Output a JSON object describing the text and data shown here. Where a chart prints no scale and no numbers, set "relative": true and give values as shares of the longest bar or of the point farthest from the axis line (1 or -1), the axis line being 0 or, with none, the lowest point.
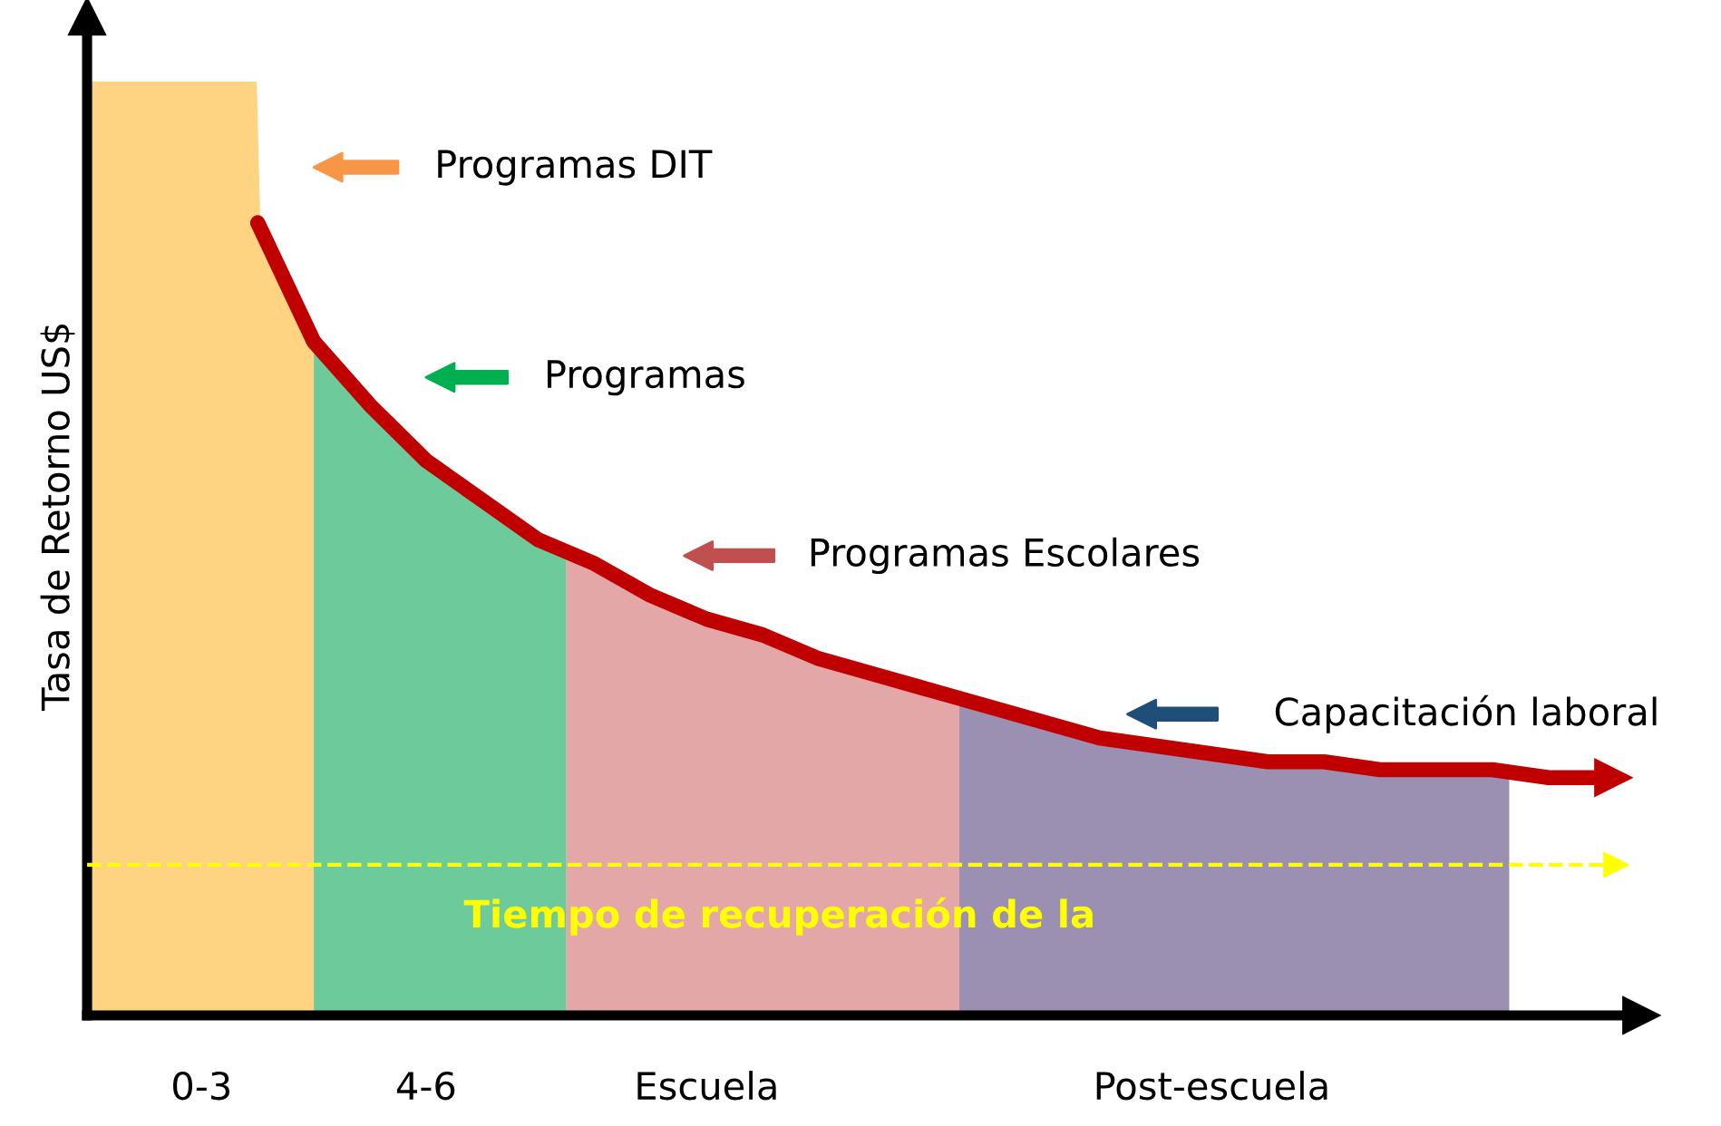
{
  "chart_data": {
    "type": "line",
    "relative": true,
    "ylabel": "Tasa de Retorno US$",
    "tick_labels": "x",
    "line_style": "solid",
    "marker": "none",
    "categories": [
      "0-3",
      null,
      null,
      null,
      "4-6",
      null,
      null,
      null,
      null,
      "Escuela",
      null,
      null,
      null,
      null,
      null,
      null,
      null,
      null,
      "Post-escuela",
      null,
      null,
      null,
      null,
      null,
      null,
      null
    ],
    "series": [
      {
        "color": "#c00000",
        "values": [
          null,
          1.0,
          0.85,
          0.77,
          0.7,
          0.65,
          0.6,
          0.57,
          0.53,
          0.5,
          0.48,
          0.45,
          0.43,
          0.41,
          0.39,
          0.37,
          0.35,
          0.34,
          0.33,
          0.32,
          0.32,
          0.31,
          0.31,
          0.31,
          0.3,
          0.3
        ]
      }
    ],
    "ref_lines": [
      {
        "axis": "y",
        "value": 0.19,
        "label": "Tiempo de recuperación de la",
        "color": "#ffff00",
        "line_style": "dashed"
      }
    ],
    "annotations": [
      "Programas DIT",
      "Programas",
      "Programas Escolares",
      "Capacitación laboral"
    ]
  }
}
